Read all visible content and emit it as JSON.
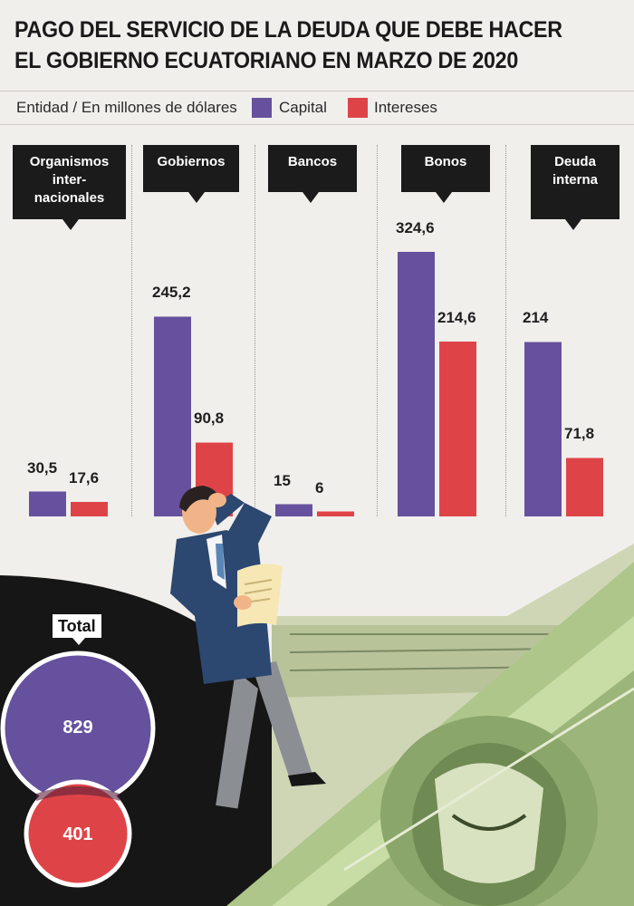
{
  "title_line1": "PAGO DEL SERVICIO DE LA DEUDA QUE DEBE HACER",
  "title_line2": "EL GOBIERNO ECUATORIANO EN MARZO DE 2020",
  "legend": {
    "label": "Entidad / En millones de dólares",
    "capital": "Capital",
    "intereses": "Intereses"
  },
  "colors": {
    "capital": "#65519d",
    "intereses": "#de4447",
    "background": "#f1efec",
    "dark": "#1b1b1b"
  },
  "chart_data": {
    "type": "bar",
    "categories": [
      "Organismos internacionales",
      "Gobiernos",
      "Bancos",
      "Bonos",
      "Deuda interna"
    ],
    "series": [
      {
        "name": "Capital",
        "values": [
          30.5,
          245.2,
          15,
          324.6,
          214
        ]
      },
      {
        "name": "Intereses",
        "values": [
          17.6,
          90.8,
          6,
          214.6,
          71.8
        ]
      }
    ],
    "value_labels": {
      "capital": [
        "30,5",
        "245,2",
        "15",
        "324,6",
        "214"
      ],
      "intereses": [
        "17,6",
        "90,8",
        "6",
        "214,6",
        "71,8"
      ]
    },
    "ylim": [
      0,
      324.6
    ],
    "grid": false,
    "legend": "top"
  },
  "categories_display": {
    "c0": [
      "Organismos",
      "inter-",
      "nacionales"
    ],
    "c1": [
      "Gobiernos"
    ],
    "c2": [
      "Bancos"
    ],
    "c3": [
      "Bonos"
    ],
    "c4": [
      "Deuda",
      "interna"
    ]
  },
  "total": {
    "label": "Total",
    "capital": "829",
    "intereses": "401"
  }
}
